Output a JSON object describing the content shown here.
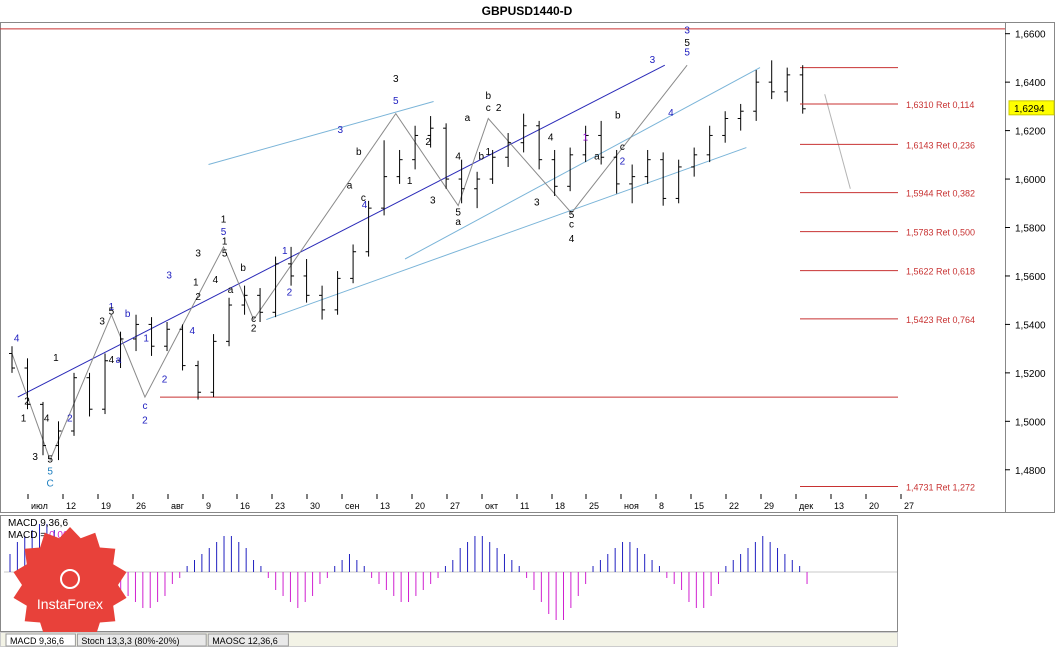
{
  "chart_data": {
    "type": "candlestick",
    "title": "GBPUSD1440-D",
    "ylim": [
      1.47,
      1.664
    ],
    "price_ticks": [
      "1,6600",
      "1,6400",
      "1,6200",
      "1,6000",
      "1,5800",
      "1,5600",
      "1,5400",
      "1,5200",
      "1,5000",
      "1,4800"
    ],
    "current_price": {
      "value": 1.6294,
      "label": "1,6294"
    },
    "date_ticks": [
      "июл",
      "12",
      "19",
      "26",
      "авг",
      "9",
      "16",
      "23",
      "30",
      "сен",
      "13",
      "20",
      "27",
      "окт",
      "11",
      "18",
      "25",
      "ноя",
      "8",
      "15",
      "22",
      "29",
      "дек",
      "13",
      "20",
      "27"
    ],
    "fib_levels": [
      {
        "value": 1.631,
        "label": "1,6310 Ret 0,114"
      },
      {
        "value": 1.6143,
        "label": "1,6143 Ret 0,236"
      },
      {
        "value": 1.5944,
        "label": "1,5944 Ret 0,382"
      },
      {
        "value": 1.5783,
        "label": "1,5783 Ret 0,500"
      },
      {
        "value": 1.5622,
        "label": "1,5622 Ret 0,618"
      },
      {
        "value": 1.5423,
        "label": "1,5423 Ret 0,764"
      },
      {
        "value": 1.4731,
        "label": "1,4731 Ret 1,272"
      }
    ],
    "horizontal_levels": [
      1.662,
      1.646,
      1.51
    ],
    "trend_lines": [
      {
        "x": [
          0.5,
          48
        ],
        "y": [
          1.51,
          1.647
        ],
        "color": "#2a2ab8"
      },
      {
        "x": [
          17,
          31
        ],
        "y": [
          1.606,
          1.632
        ],
        "color": "#7ab4d8"
      },
      {
        "x": [
          34,
          55
        ],
        "y": [
          1.567,
          1.646
        ],
        "color": "#7ab4d8"
      },
      {
        "x": [
          22,
          54
        ],
        "y": [
          1.542,
          1.613
        ],
        "color": "#7ab4d8"
      }
    ],
    "forecast_line": {
      "x": [
        49.8,
        51.8
      ],
      "y": [
        1.635,
        1.596
      ]
    },
    "candles": [
      {
        "o": 1.528,
        "h": 1.531,
        "l": 1.52,
        "c": 1.522
      },
      {
        "o": 1.522,
        "h": 1.526,
        "l": 1.505,
        "c": 1.507
      },
      {
        "o": 1.507,
        "h": 1.508,
        "l": 1.486,
        "c": 1.49
      },
      {
        "o": 1.49,
        "h": 1.5,
        "l": 1.484,
        "c": 1.496
      },
      {
        "o": 1.496,
        "h": 1.52,
        "l": 1.494,
        "c": 1.518
      },
      {
        "o": 1.518,
        "h": 1.52,
        "l": 1.502,
        "c": 1.505
      },
      {
        "o": 1.505,
        "h": 1.528,
        "l": 1.503,
        "c": 1.525
      },
      {
        "o": 1.525,
        "h": 1.537,
        "l": 1.522,
        "c": 1.534
      },
      {
        "o": 1.534,
        "h": 1.544,
        "l": 1.529,
        "c": 1.54
      },
      {
        "o": 1.54,
        "h": 1.543,
        "l": 1.527,
        "c": 1.531
      },
      {
        "o": 1.531,
        "h": 1.541,
        "l": 1.529,
        "c": 1.538
      },
      {
        "o": 1.538,
        "h": 1.54,
        "l": 1.521,
        "c": 1.523
      },
      {
        "o": 1.523,
        "h": 1.525,
        "l": 1.509,
        "c": 1.512
      },
      {
        "o": 1.512,
        "h": 1.536,
        "l": 1.51,
        "c": 1.533
      },
      {
        "o": 1.533,
        "h": 1.551,
        "l": 1.531,
        "c": 1.548
      },
      {
        "o": 1.548,
        "h": 1.556,
        "l": 1.544,
        "c": 1.552
      },
      {
        "o": 1.552,
        "h": 1.555,
        "l": 1.541,
        "c": 1.545
      },
      {
        "o": 1.545,
        "h": 1.568,
        "l": 1.543,
        "c": 1.565
      },
      {
        "o": 1.565,
        "h": 1.572,
        "l": 1.556,
        "c": 1.56
      },
      {
        "o": 1.56,
        "h": 1.567,
        "l": 1.549,
        "c": 1.552
      },
      {
        "o": 1.552,
        "h": 1.556,
        "l": 1.542,
        "c": 1.546
      },
      {
        "o": 1.546,
        "h": 1.562,
        "l": 1.544,
        "c": 1.559
      },
      {
        "o": 1.559,
        "h": 1.573,
        "l": 1.557,
        "c": 1.57
      },
      {
        "o": 1.57,
        "h": 1.591,
        "l": 1.568,
        "c": 1.588
      },
      {
        "o": 1.588,
        "h": 1.616,
        "l": 1.585,
        "c": 1.601
      },
      {
        "o": 1.601,
        "h": 1.612,
        "l": 1.598,
        "c": 1.608
      },
      {
        "o": 1.608,
        "h": 1.622,
        "l": 1.604,
        "c": 1.618
      },
      {
        "o": 1.618,
        "h": 1.626,
        "l": 1.613,
        "c": 1.621
      },
      {
        "o": 1.621,
        "h": 1.623,
        "l": 1.596,
        "c": 1.6
      },
      {
        "o": 1.6,
        "h": 1.608,
        "l": 1.59,
        "c": 1.596
      },
      {
        "o": 1.596,
        "h": 1.603,
        "l": 1.588,
        "c": 1.6
      },
      {
        "o": 1.6,
        "h": 1.612,
        "l": 1.598,
        "c": 1.609
      },
      {
        "o": 1.609,
        "h": 1.619,
        "l": 1.605,
        "c": 1.615
      },
      {
        "o": 1.615,
        "h": 1.627,
        "l": 1.611,
        "c": 1.622
      },
      {
        "o": 1.622,
        "h": 1.624,
        "l": 1.604,
        "c": 1.608
      },
      {
        "o": 1.608,
        "h": 1.612,
        "l": 1.593,
        "c": 1.597
      },
      {
        "o": 1.597,
        "h": 1.613,
        "l": 1.595,
        "c": 1.61
      },
      {
        "o": 1.61,
        "h": 1.622,
        "l": 1.607,
        "c": 1.618
      },
      {
        "o": 1.618,
        "h": 1.624,
        "l": 1.606,
        "c": 1.609
      },
      {
        "o": 1.609,
        "h": 1.612,
        "l": 1.594,
        "c": 1.598
      },
      {
        "o": 1.598,
        "h": 1.606,
        "l": 1.59,
        "c": 1.601
      },
      {
        "o": 1.601,
        "h": 1.612,
        "l": 1.598,
        "c": 1.608
      },
      {
        "o": 1.608,
        "h": 1.611,
        "l": 1.589,
        "c": 1.592
      },
      {
        "o": 1.592,
        "h": 1.608,
        "l": 1.59,
        "c": 1.605
      },
      {
        "o": 1.605,
        "h": 1.613,
        "l": 1.601,
        "c": 1.61
      },
      {
        "o": 1.61,
        "h": 1.622,
        "l": 1.607,
        "c": 1.618
      },
      {
        "o": 1.618,
        "h": 1.628,
        "l": 1.615,
        "c": 1.625
      },
      {
        "o": 1.625,
        "h": 1.631,
        "l": 1.62,
        "c": 1.628
      },
      {
        "o": 1.628,
        "h": 1.645,
        "l": 1.624,
        "c": 1.64
      },
      {
        "o": 1.64,
        "h": 1.649,
        "l": 1.633,
        "c": 1.636
      },
      {
        "o": 1.636,
        "h": 1.646,
        "l": 1.632,
        "c": 1.643
      },
      {
        "o": 1.643,
        "h": 1.647,
        "l": 1.627,
        "c": 1.629
      }
    ],
    "wave_labels": [
      {
        "text": "4",
        "x": 0.4,
        "y": 1.533,
        "color": "#2020c0"
      },
      {
        "text": "2",
        "x": 1.3,
        "y": 1.507,
        "color": "#000000"
      },
      {
        "text": "1",
        "x": 1.0,
        "y": 1.5,
        "color": "#000000"
      },
      {
        "text": "3",
        "x": 2.0,
        "y": 1.484,
        "color": "#000000"
      },
      {
        "text": "4",
        "x": 3.0,
        "y": 1.5,
        "color": "#000000"
      },
      {
        "text": "5",
        "x": 3.3,
        "y": 1.483,
        "color": "#000000"
      },
      {
        "text": "5",
        "x": 3.3,
        "y": 1.478,
        "color": "#2080c0"
      },
      {
        "text": "C",
        "x": 3.3,
        "y": 1.473,
        "color": "#2080c0"
      },
      {
        "text": "1",
        "x": 3.8,
        "y": 1.525,
        "color": "#000000"
      },
      {
        "text": "2",
        "x": 5.0,
        "y": 1.5,
        "color": "#2020c0"
      },
      {
        "text": "3",
        "x": 7.8,
        "y": 1.54,
        "color": "#000000"
      },
      {
        "text": "4",
        "x": 8.6,
        "y": 1.524,
        "color": "#000000"
      },
      {
        "text": "1",
        "x": 8.6,
        "y": 1.546,
        "color": "#2020c0"
      },
      {
        "text": "5",
        "x": 8.6,
        "y": 1.544,
        "color": "#000000"
      },
      {
        "text": "a",
        "x": 9.2,
        "y": 1.524,
        "color": "#2020c0"
      },
      {
        "text": "b",
        "x": 10.0,
        "y": 1.543,
        "color": "#2020c0"
      },
      {
        "text": "c",
        "x": 11.5,
        "y": 1.505,
        "color": "#2020c0"
      },
      {
        "text": "2",
        "x": 11.5,
        "y": 1.499,
        "color": "#2020c0"
      },
      {
        "text": "1",
        "x": 11.6,
        "y": 1.533,
        "color": "#2020c0"
      },
      {
        "text": "2",
        "x": 13.2,
        "y": 1.516,
        "color": "#2020c0"
      },
      {
        "text": "3",
        "x": 13.6,
        "y": 1.559,
        "color": "#2020c0"
      },
      {
        "text": "1",
        "x": 15.9,
        "y": 1.556,
        "color": "#000000"
      },
      {
        "text": "2",
        "x": 16.1,
        "y": 1.55,
        "color": "#000000"
      },
      {
        "text": "4",
        "x": 15.6,
        "y": 1.536,
        "color": "#2020c0"
      },
      {
        "text": "3",
        "x": 16.1,
        "y": 1.568,
        "color": "#000000"
      },
      {
        "text": "4",
        "x": 17.6,
        "y": 1.557,
        "color": "#000000"
      },
      {
        "text": "1",
        "x": 18.4,
        "y": 1.573,
        "color": "#000000"
      },
      {
        "text": "5",
        "x": 18.4,
        "y": 1.568,
        "color": "#000000"
      },
      {
        "text": "5",
        "x": 18.3,
        "y": 1.577,
        "color": "#2020c0"
      },
      {
        "text": "1",
        "x": 18.3,
        "y": 1.582,
        "color": "#000000"
      },
      {
        "text": "a",
        "x": 18.9,
        "y": 1.553,
        "color": "#000000"
      },
      {
        "text": "b",
        "x": 20.0,
        "y": 1.562,
        "color": "#000000"
      },
      {
        "text": "c",
        "x": 20.9,
        "y": 1.541,
        "color": "#000000"
      },
      {
        "text": "2",
        "x": 20.9,
        "y": 1.537,
        "color": "#000000"
      },
      {
        "text": "1",
        "x": 23.6,
        "y": 1.569,
        "color": "#2020c0"
      },
      {
        "text": "2",
        "x": 24.0,
        "y": 1.552,
        "color": "#2020c0"
      },
      {
        "text": "3",
        "x": 28.4,
        "y": 1.619,
        "color": "#2020c0"
      },
      {
        "text": "b",
        "x": 30.0,
        "y": 1.61,
        "color": "#000000"
      },
      {
        "text": "a",
        "x": 29.2,
        "y": 1.596,
        "color": "#000000"
      },
      {
        "text": "c",
        "x": 30.4,
        "y": 1.591,
        "color": "#000000"
      },
      {
        "text": "4",
        "x": 30.5,
        "y": 1.588,
        "color": "#2020c0"
      },
      {
        "text": "3",
        "x": 33.2,
        "y": 1.64,
        "color": "#000000"
      },
      {
        "text": "5",
        "x": 33.2,
        "y": 1.631,
        "color": "#2020c0"
      },
      {
        "text": "2",
        "x": 36.0,
        "y": 1.614,
        "color": "#000000"
      },
      {
        "text": "1",
        "x": 34.4,
        "y": 1.598,
        "color": "#000000"
      },
      {
        "text": "3",
        "x": 36.4,
        "y": 1.59,
        "color": "#000000"
      },
      {
        "text": "4",
        "x": 38.6,
        "y": 1.608,
        "color": "#000000"
      },
      {
        "text": "5",
        "x": 38.6,
        "y": 1.585,
        "color": "#000000"
      },
      {
        "text": "a",
        "x": 38.6,
        "y": 1.581,
        "color": "#000000"
      },
      {
        "text": "a",
        "x": 39.4,
        "y": 1.624,
        "color": "#000000"
      },
      {
        "text": "b",
        "x": 41.2,
        "y": 1.633,
        "color": "#000000"
      },
      {
        "text": "c",
        "x": 41.2,
        "y": 1.628,
        "color": "#000000"
      },
      {
        "text": "2",
        "x": 42.1,
        "y": 1.628,
        "color": "#000000"
      },
      {
        "text": "1",
        "x": 41.2,
        "y": 1.61,
        "color": "#000000"
      },
      {
        "text": "b",
        "x": 40.6,
        "y": 1.608,
        "color": "#000000"
      },
      {
        "text": "3",
        "x": 45.4,
        "y": 1.589,
        "color": "#000000"
      },
      {
        "text": "4",
        "x": 46.6,
        "y": 1.616,
        "color": "#000000"
      },
      {
        "text": "5",
        "x": 48.4,
        "y": 1.584,
        "color": "#000000"
      },
      {
        "text": "c",
        "x": 48.4,
        "y": 1.58,
        "color": "#000000"
      },
      {
        "text": "4",
        "x": 48.4,
        "y": 1.574,
        "color": "#000000"
      },
      {
        "text": "1",
        "x": 49.6,
        "y": 1.616,
        "color": "#8000c0"
      },
      {
        "text": "b",
        "x": 52.4,
        "y": 1.625,
        "color": "#000000"
      },
      {
        "text": "a",
        "x": 50.6,
        "y": 1.608,
        "color": "#000000"
      },
      {
        "text": "c",
        "x": 52.8,
        "y": 1.612,
        "color": "#000000"
      },
      {
        "text": "2",
        "x": 52.8,
        "y": 1.606,
        "color": "#2020c0"
      },
      {
        "text": "3",
        "x": 55.4,
        "y": 1.648,
        "color": "#2020c0"
      },
      {
        "text": "4",
        "x": 57.0,
        "y": 1.626,
        "color": "#2020c0"
      },
      {
        "text": "5",
        "x": 58.4,
        "y": 1.651,
        "color": "#2020c0"
      },
      {
        "text": "5",
        "x": 58.4,
        "y": 1.655,
        "color": "#000000"
      },
      {
        "text": "3",
        "x": 58.4,
        "y": 1.66,
        "color": "#2020c0"
      }
    ],
    "indicator": {
      "macd_label": "MACD 9,36,6",
      "macd_value_label": "MACD =",
      "macd_value": "0,00",
      "histogram": [
        3,
        5,
        6,
        7,
        8,
        8,
        7,
        6,
        5,
        3,
        2,
        2,
        1,
        -1,
        -2,
        -3,
        -4,
        -5,
        -6,
        -6,
        -5,
        -4,
        -2,
        -1,
        1,
        2,
        3,
        4,
        5,
        6,
        6,
        5,
        4,
        2,
        1,
        -1,
        -3,
        -4,
        -5,
        -6,
        -5,
        -4,
        -2,
        -1,
        1,
        2,
        3,
        2,
        1,
        -1,
        -2,
        -3,
        -4,
        -5,
        -5,
        -4,
        -3,
        -2,
        -1,
        1,
        2,
        4,
        5,
        6,
        6,
        5,
        4,
        3,
        2,
        1,
        -1,
        -3,
        -5,
        -7,
        -8,
        -8,
        -6,
        -4,
        -2,
        1,
        2,
        3,
        4,
        5,
        5,
        4,
        3,
        2,
        1,
        -1,
        -2,
        -3,
        -5,
        -6,
        -6,
        -4,
        -2,
        1,
        2,
        3,
        4,
        5,
        6,
        5,
        4,
        3,
        2,
        1,
        -2
      ]
    },
    "tabs": [
      "MACD 9,36,6",
      "Stoch 13,3,3 (80%-20%)",
      "MAOSC 12,36,6"
    ],
    "watermark": "InstaForex"
  }
}
